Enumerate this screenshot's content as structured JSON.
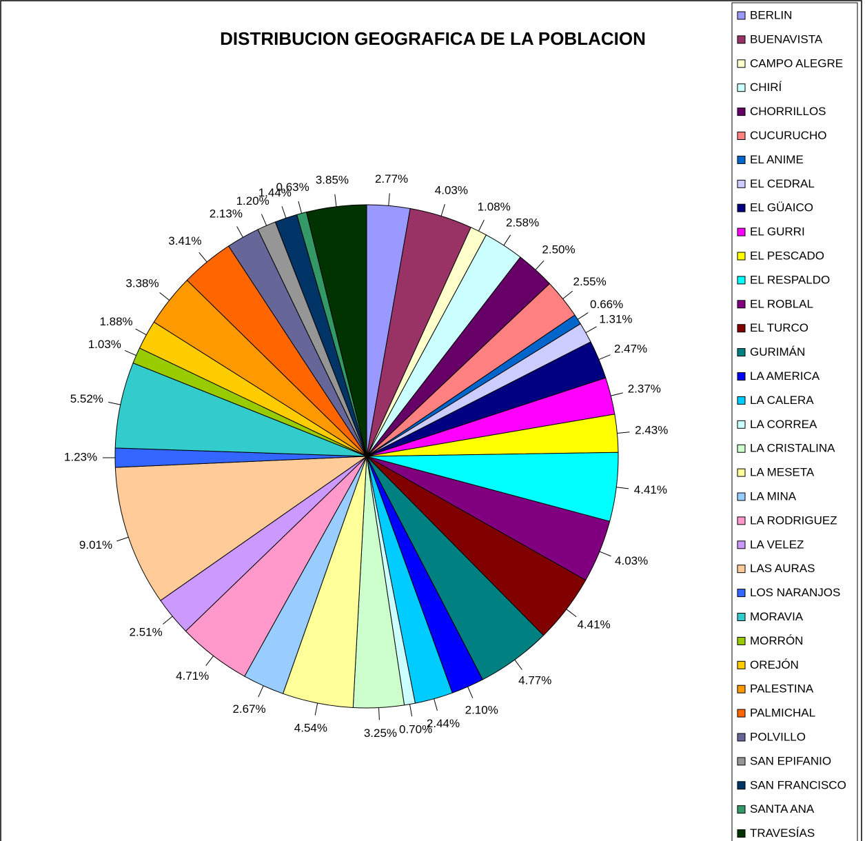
{
  "chart_data": {
    "type": "pie",
    "title": "DISTRIBUCION GEOGRAFICA DE LA POBLACION",
    "categories": [
      "BERLIN",
      "BUENAVISTA",
      "CAMPO ALEGRE",
      "CHIRÍ",
      "CHORRILLOS",
      "CUCURUCHO",
      "EL ANIME",
      "EL CEDRAL",
      "EL GÜAICO",
      "EL GURRI",
      "EL PESCADO",
      "EL RESPALDO",
      "EL ROBLAL",
      "EL TURCO",
      "GURIMÁN",
      "LA AMERICA",
      "LA CALERA",
      "LA CORREA",
      "LA CRISTALINA",
      "LA MESETA",
      "LA MINA",
      "LA RODRIGUEZ",
      "LA VELEZ",
      "LAS AURAS",
      "LOS NARANJOS",
      "MORAVIA",
      "MORRÓN",
      "OREJÓN",
      "PALESTINA",
      "PALMICHAL",
      "POLVILLO",
      "SAN EPIFANIO",
      "SAN FRANCISCO",
      "SANTA ANA",
      "TRAVESÍAS"
    ],
    "values": [
      2.77,
      4.03,
      1.08,
      2.58,
      2.5,
      2.55,
      0.66,
      1.31,
      2.47,
      2.37,
      2.43,
      4.41,
      4.03,
      4.41,
      4.77,
      2.1,
      2.44,
      0.7,
      3.25,
      4.54,
      2.67,
      4.71,
      2.51,
      9.01,
      1.23,
      5.52,
      1.03,
      1.88,
      3.38,
      3.41,
      2.13,
      1.2,
      1.44,
      0.63,
      3.85
    ],
    "value_labels": [
      "2.77%",
      "4.03%",
      "1.08%",
      "2.58%",
      "2.50%",
      "2.55%",
      "0.66%",
      "1.31%",
      "2.47%",
      "2.37%",
      "2.43%",
      "4.41%",
      "4.03%",
      "4.41%",
      "4.77%",
      "2.10%",
      "2.44%",
      "0.70%",
      "3.25%",
      "4.54%",
      "2.67%",
      "4.71%",
      "2.51%",
      "9.01%",
      "1.23%",
      "5.52%",
      "1.03%",
      "1.88%",
      "3.38%",
      "3.41%",
      "2.13%",
      "1.20%",
      "1.44%",
      "0.63%",
      "3.85%"
    ],
    "colors": [
      "#9999ff",
      "#993366",
      "#ffffcc",
      "#ccffff",
      "#660066",
      "#ff8080",
      "#0066cc",
      "#ccccff",
      "#000080",
      "#ff00ff",
      "#ffff00",
      "#00ffff",
      "#800080",
      "#800000",
      "#008080",
      "#0000ff",
      "#00ccff",
      "#ccffff",
      "#ccffcc",
      "#ffff99",
      "#99ccff",
      "#ff99cc",
      "#cc99ff",
      "#ffcc99",
      "#3366ff",
      "#33cccc",
      "#99cc00",
      "#ffcc00",
      "#ff9900",
      "#ff6600",
      "#666699",
      "#969696",
      "#003366",
      "#339966",
      "#003300"
    ],
    "legend": "right"
  }
}
